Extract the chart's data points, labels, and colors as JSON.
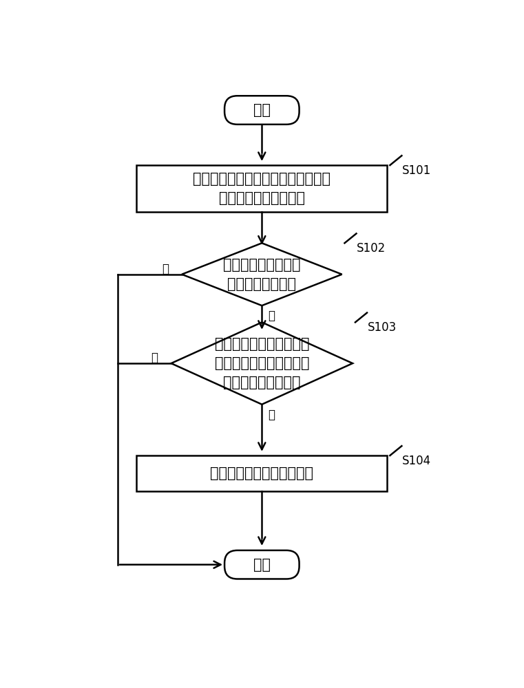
{
  "bg_color": "#ffffff",
  "line_color": "#000000",
  "text_color": "#000000",
  "font_size_main": 15,
  "font_size_label": 12,
  "start_end_text": [
    "开始",
    "结束"
  ],
  "step_labels": [
    "检测用户终端移动至距离人体为目标\n距离时的途经轨迹数据",
    "判断目标距离是否小\n于或等于预设距离",
    "判断预存储的特征数据集\n合中是否存在与途经轨迹\n数据匹配的特征数据",
    "将第一天线切换到第二天线"
  ],
  "step_ids": [
    "S101",
    "S102",
    "S103",
    "S104"
  ],
  "no_label": "否",
  "yes_label": "是"
}
